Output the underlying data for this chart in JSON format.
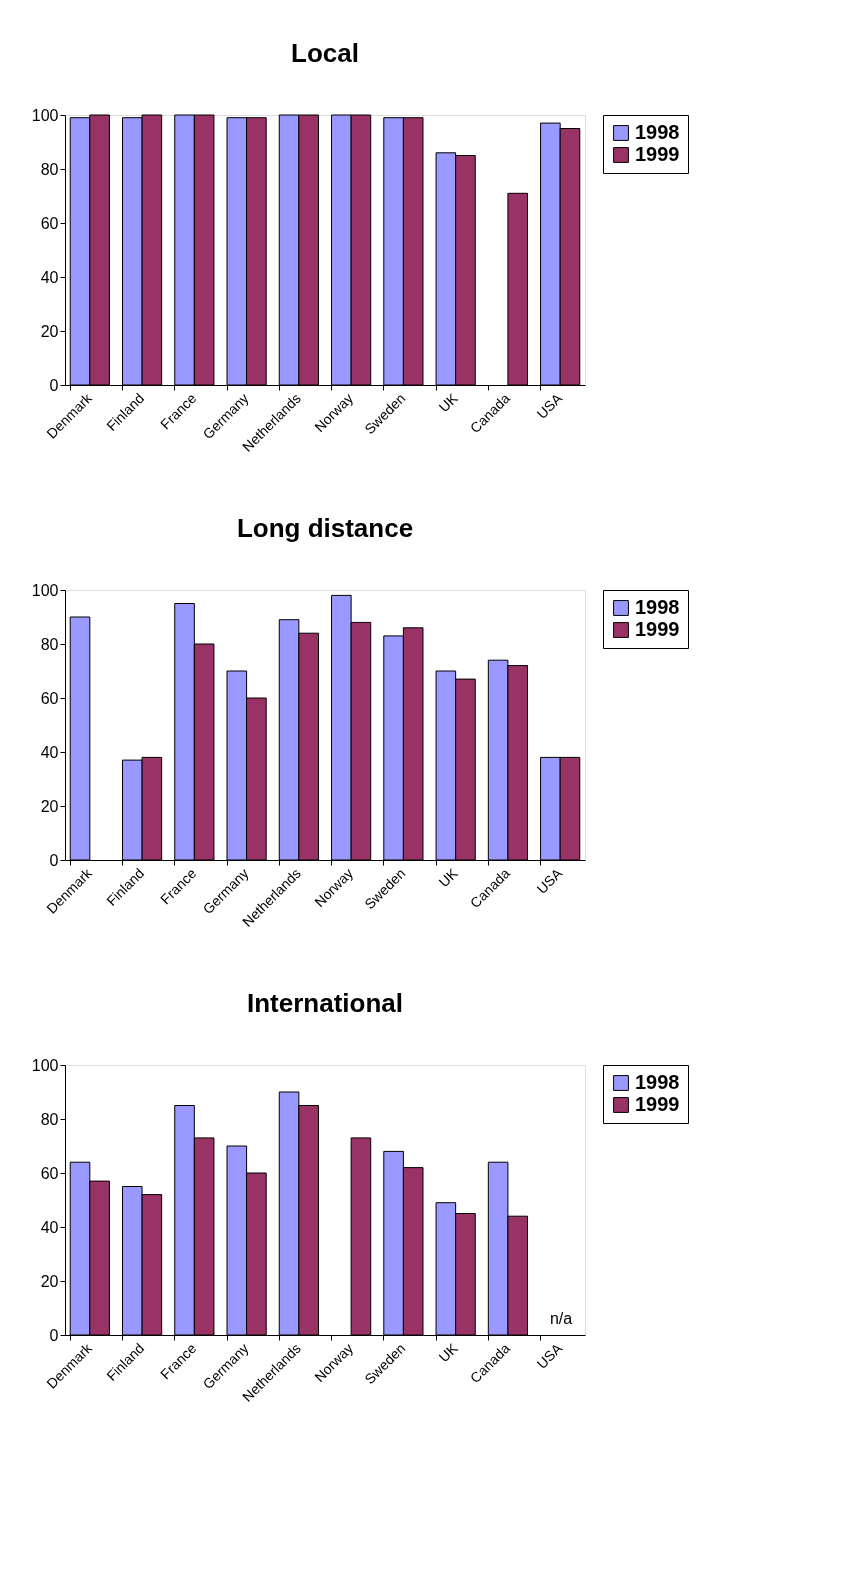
{
  "chart_data": [
    {
      "type": "bar",
      "title": "Local",
      "categories": [
        "Denmark",
        "Finland",
        "France",
        "Germany",
        "Netherlands",
        "Norway",
        "Sweden",
        "UK",
        "Canada",
        "USA"
      ],
      "series": [
        {
          "name": "1998",
          "color": "#9999ff",
          "values": [
            99,
            99,
            100,
            99,
            100,
            100,
            99,
            86,
            null,
            97
          ]
        },
        {
          "name": "1999",
          "color": "#993366",
          "values": [
            100,
            100,
            100,
            99,
            100,
            100,
            99,
            85,
            71,
            95
          ]
        }
      ],
      "ylim": [
        0,
        100
      ],
      "yticks": [
        0,
        20,
        40,
        60,
        80,
        100
      ],
      "grid": false,
      "legend": "right"
    },
    {
      "type": "bar",
      "title": "Long distance",
      "categories": [
        "Denmark",
        "Finland",
        "France",
        "Germany",
        "Netherlands",
        "Norway",
        "Sweden",
        "UK",
        "Canada",
        "USA"
      ],
      "series": [
        {
          "name": "1998",
          "color": "#9999ff",
          "values": [
            90,
            37,
            95,
            70,
            89,
            98,
            83,
            70,
            74,
            38
          ]
        },
        {
          "name": "1999",
          "color": "#993366",
          "values": [
            null,
            38,
            80,
            60,
            84,
            88,
            86,
            67,
            72,
            38
          ]
        }
      ],
      "ylim": [
        0,
        100
      ],
      "yticks": [
        0,
        20,
        40,
        60,
        80,
        100
      ],
      "grid": false,
      "legend": "right"
    },
    {
      "type": "bar",
      "title": "International",
      "categories": [
        "Denmark",
        "Finland",
        "France",
        "Germany",
        "Netherlands",
        "Norway",
        "Sweden",
        "UK",
        "Canada",
        "USA"
      ],
      "series": [
        {
          "name": "1998",
          "color": "#9999ff",
          "values": [
            64,
            55,
            85,
            70,
            90,
            null,
            68,
            49,
            64,
            null
          ]
        },
        {
          "name": "1999",
          "color": "#993366",
          "values": [
            57,
            52,
            73,
            60,
            85,
            73,
            62,
            45,
            44,
            null
          ]
        }
      ],
      "ylim": [
        0,
        100
      ],
      "yticks": [
        0,
        20,
        40,
        60,
        80,
        100
      ],
      "grid": false,
      "legend": "right",
      "annotations": [
        "n/a"
      ]
    }
  ]
}
